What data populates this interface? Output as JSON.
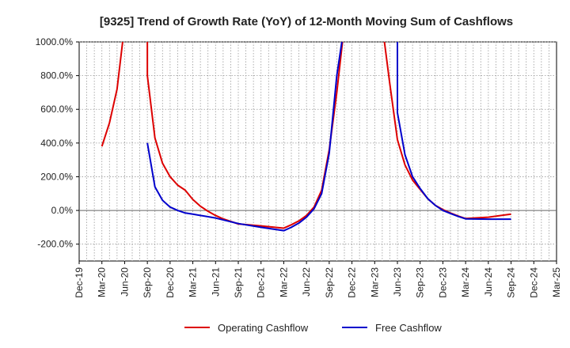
{
  "chart_data": {
    "type": "line",
    "title": "[9325]  Trend of Growth Rate (YoY) of 12-Month Moving Sum of Cashflows",
    "xlabel": "",
    "ylabel": "",
    "ylim": [
      -300,
      1000
    ],
    "y_ticks": [
      -200,
      0,
      200,
      400,
      600,
      800,
      1000
    ],
    "y_tick_labels": [
      "-200.0%",
      "0.0%",
      "200.0%",
      "400.0%",
      "600.0%",
      "800.0%",
      "1000.0%"
    ],
    "x_tick_labels": [
      "Dec-19",
      "Mar-20",
      "Jun-20",
      "Sep-20",
      "Dec-20",
      "Mar-21",
      "Jun-21",
      "Sep-21",
      "Dec-21",
      "Mar-22",
      "Jun-22",
      "Sep-22",
      "Dec-22",
      "Mar-23",
      "Jun-23",
      "Sep-23",
      "Dec-23",
      "Mar-24",
      "Jun-24",
      "Sep-24",
      "Dec-24",
      "Mar-25"
    ],
    "grid": true,
    "legend_position": "bottom",
    "series": [
      {
        "name": "Operating Cashflow",
        "color": "#dd0000",
        "points": [
          [
            "Mar-20",
            380
          ],
          [
            "Apr-20",
            520
          ],
          [
            "May-20",
            720
          ],
          [
            "Jun-20",
            1100
          ],
          [
            "Sep-20",
            1100
          ],
          [
            "Sep-20",
            800
          ],
          [
            "Oct-20",
            430
          ],
          [
            "Nov-20",
            280
          ],
          [
            "Dec-20",
            200
          ],
          [
            "Jan-21",
            150
          ],
          [
            "Feb-21",
            120
          ],
          [
            "Mar-21",
            65
          ],
          [
            "Apr-21",
            25
          ],
          [
            "May-21",
            -5
          ],
          [
            "Jun-21",
            -30
          ],
          [
            "Jul-21",
            -50
          ],
          [
            "Aug-21",
            -65
          ],
          [
            "Sep-21",
            -80
          ],
          [
            "Dec-21",
            -92
          ],
          [
            "Mar-22",
            -105
          ],
          [
            "Apr-22",
            -85
          ],
          [
            "May-22",
            -62
          ],
          [
            "Jun-22",
            -30
          ],
          [
            "Jul-22",
            20
          ],
          [
            "Aug-22",
            120
          ],
          [
            "Sep-22",
            360
          ],
          [
            "Oct-22",
            700
          ],
          [
            "Nov-22",
            1100
          ],
          [
            "Apr-23",
            1100
          ],
          [
            "May-23",
            750
          ],
          [
            "Jun-23",
            420
          ],
          [
            "Jul-23",
            270
          ],
          [
            "Aug-23",
            180
          ],
          [
            "Sep-23",
            125
          ],
          [
            "Oct-23",
            70
          ],
          [
            "Nov-23",
            30
          ],
          [
            "Dec-23",
            5
          ],
          [
            "Jan-24",
            -15
          ],
          [
            "Feb-24",
            -33
          ],
          [
            "Mar-24",
            -48
          ],
          [
            "Jun-24",
            -40
          ],
          [
            "Sep-24",
            -22
          ]
        ]
      },
      {
        "name": "Free Cashflow",
        "color": "#0000cc",
        "points": [
          [
            "Sep-20",
            400
          ],
          [
            "Oct-20",
            140
          ],
          [
            "Nov-20",
            60
          ],
          [
            "Dec-20",
            20
          ],
          [
            "Jan-21",
            0
          ],
          [
            "Feb-21",
            -15
          ],
          [
            "Mar-21",
            -22
          ],
          [
            "Jun-21",
            -45
          ],
          [
            "Sep-21",
            -78
          ],
          [
            "Dec-21",
            -100
          ],
          [
            "Mar-22",
            -120
          ],
          [
            "Apr-22",
            -100
          ],
          [
            "May-22",
            -75
          ],
          [
            "Jun-22",
            -40
          ],
          [
            "Jul-22",
            10
          ],
          [
            "Aug-22",
            100
          ],
          [
            "Sep-22",
            340
          ],
          [
            "Oct-22",
            800
          ],
          [
            "Nov-22",
            1100
          ],
          [
            "Jun-23",
            1100
          ],
          [
            "Jun-23",
            580
          ],
          [
            "Jul-23",
            330
          ],
          [
            "Aug-23",
            200
          ],
          [
            "Sep-23",
            130
          ],
          [
            "Oct-23",
            70
          ],
          [
            "Nov-23",
            30
          ],
          [
            "Dec-23",
            0
          ],
          [
            "Jan-24",
            -18
          ],
          [
            "Feb-24",
            -35
          ],
          [
            "Mar-24",
            -50
          ],
          [
            "Jun-24",
            -52
          ],
          [
            "Sep-24",
            -52
          ]
        ]
      }
    ]
  }
}
